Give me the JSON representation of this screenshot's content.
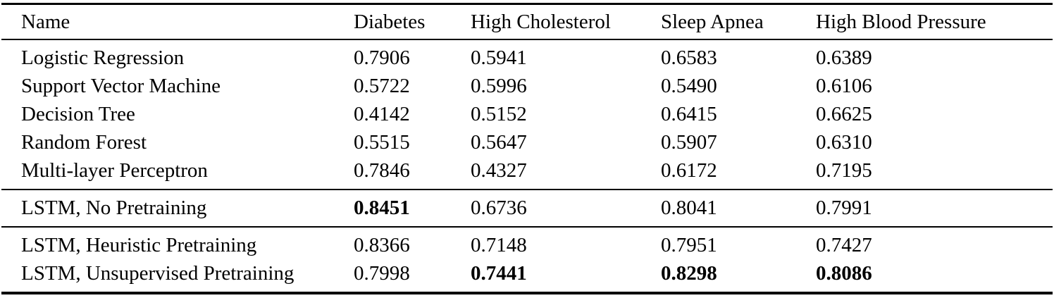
{
  "table": {
    "columns": [
      "Name",
      "Diabetes",
      "High Cholesterol",
      "Sleep Apnea",
      "High Blood Pressure"
    ],
    "groups": [
      {
        "rows": [
          {
            "name": "Logistic Regression",
            "values": [
              "0.7906",
              "0.5941",
              "0.6583",
              "0.6389"
            ],
            "bold": [
              false,
              false,
              false,
              false
            ]
          },
          {
            "name": "Support Vector Machine",
            "values": [
              "0.5722",
              "0.5996",
              "0.5490",
              "0.6106"
            ],
            "bold": [
              false,
              false,
              false,
              false
            ]
          },
          {
            "name": "Decision Tree",
            "values": [
              "0.4142",
              "0.5152",
              "0.6415",
              "0.6625"
            ],
            "bold": [
              false,
              false,
              false,
              false
            ]
          },
          {
            "name": "Random Forest",
            "values": [
              "0.5515",
              "0.5647",
              "0.5907",
              "0.6310"
            ],
            "bold": [
              false,
              false,
              false,
              false
            ]
          },
          {
            "name": "Multi-layer Perceptron",
            "values": [
              "0.7846",
              "0.4327",
              "0.6172",
              "0.7195"
            ],
            "bold": [
              false,
              false,
              false,
              false
            ]
          }
        ]
      },
      {
        "rows": [
          {
            "name": "LSTM, No Pretraining",
            "values": [
              "0.8451",
              "0.6736",
              "0.8041",
              "0.7991"
            ],
            "bold": [
              true,
              false,
              false,
              false
            ]
          }
        ]
      },
      {
        "rows": [
          {
            "name": "LSTM, Heuristic Pretraining",
            "values": [
              "0.8366",
              "0.7148",
              "0.7951",
              "0.7427"
            ],
            "bold": [
              false,
              false,
              false,
              false
            ]
          },
          {
            "name": "LSTM, Unsupervised Pretraining",
            "values": [
              "0.7998",
              "0.7441",
              "0.8298",
              "0.8086"
            ],
            "bold": [
              false,
              true,
              true,
              true
            ]
          }
        ]
      }
    ]
  },
  "chart_data": {
    "type": "table",
    "title": "",
    "columns": [
      "Name",
      "Diabetes",
      "High Cholesterol",
      "Sleep Apnea",
      "High Blood Pressure"
    ],
    "rows": [
      [
        "Logistic Regression",
        0.7906,
        0.5941,
        0.6583,
        0.6389
      ],
      [
        "Support Vector Machine",
        0.5722,
        0.5996,
        0.549,
        0.6106
      ],
      [
        "Decision Tree",
        0.4142,
        0.5152,
        0.6415,
        0.6625
      ],
      [
        "Random Forest",
        0.5515,
        0.5647,
        0.5907,
        0.631
      ],
      [
        "Multi-layer Perceptron",
        0.7846,
        0.4327,
        0.6172,
        0.7195
      ],
      [
        "LSTM, No Pretraining",
        0.8451,
        0.6736,
        0.8041,
        0.7991
      ],
      [
        "LSTM, Heuristic Pretraining",
        0.8366,
        0.7148,
        0.7951,
        0.7427
      ],
      [
        "LSTM, Unsupervised Pretraining",
        0.7998,
        0.7441,
        0.8298,
        0.8086
      ]
    ]
  }
}
